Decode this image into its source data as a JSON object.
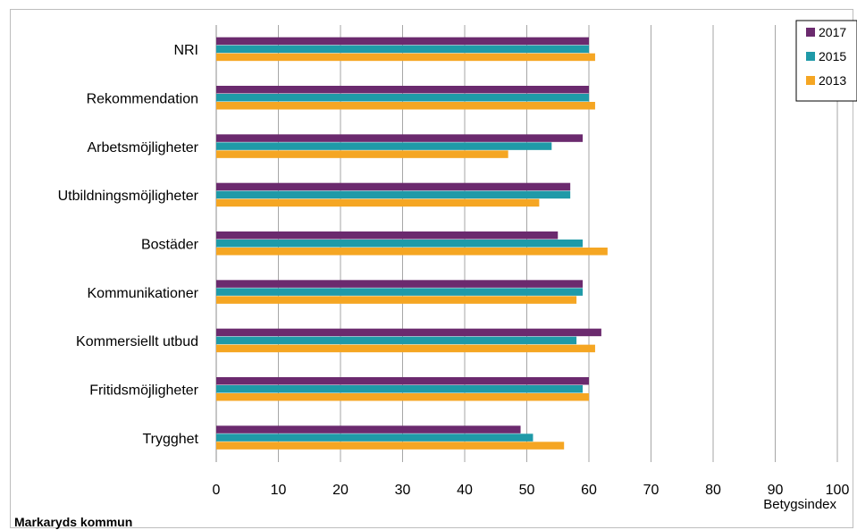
{
  "chart_data": {
    "type": "bar",
    "orientation": "horizontal",
    "categories": [
      "NRI",
      "Rekommendation",
      "Arbetsmöjligheter",
      "Utbildningsmöjligheter",
      "Bostäder",
      "Kommunikationer",
      "Kommersiellt utbud",
      "Fritidsmöjligheter",
      "Trygghet"
    ],
    "series": [
      {
        "name": "2017",
        "color": "#6b2a6e",
        "values": [
          60,
          60,
          59,
          57,
          55,
          59,
          62,
          60,
          49
        ]
      },
      {
        "name": "2015",
        "color": "#1f9aa8",
        "values": [
          60,
          60,
          54,
          57,
          59,
          59,
          58,
          59,
          51
        ]
      },
      {
        "name": "2013",
        "color": "#f5a623",
        "values": [
          61,
          61,
          47,
          52,
          63,
          58,
          61,
          60,
          56
        ]
      }
    ],
    "xlim": [
      0,
      100
    ],
    "xticks": [
      0,
      10,
      20,
      30,
      40,
      50,
      60,
      70,
      80,
      90,
      100
    ],
    "xlabel": "Betygsindex",
    "ylabel": "",
    "title": "",
    "grid": "vertical",
    "legend_position": "top-right"
  },
  "footer": {
    "title": "Markaryds kommun"
  }
}
